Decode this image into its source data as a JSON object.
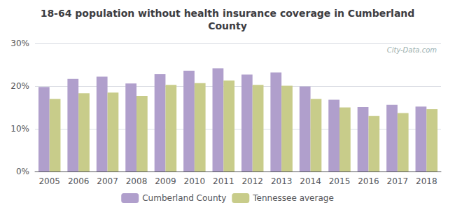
{
  "chart_data": {
    "type": "bar",
    "title": "18-64 population without health insurance coverage in Cumberland\nCounty",
    "categories": [
      "2005",
      "2006",
      "2007",
      "2008",
      "2009",
      "2010",
      "2011",
      "2012",
      "2013",
      "2014",
      "2015",
      "2016",
      "2017",
      "2018"
    ],
    "series": [
      {
        "name": "Cumberland County",
        "color": "#b09fcc",
        "values": [
          19.8,
          21.7,
          22.2,
          20.6,
          22.8,
          23.6,
          24.2,
          22.7,
          23.2,
          19.9,
          16.8,
          15.1,
          15.6,
          15.2
        ]
      },
      {
        "name": "Tennessee average",
        "color": "#c8cc8a",
        "values": [
          17.0,
          18.3,
          18.5,
          17.7,
          20.3,
          20.7,
          21.3,
          20.3,
          20.1,
          17.0,
          15.0,
          13.0,
          13.7,
          14.6
        ]
      }
    ],
    "ylim": [
      0,
      30
    ],
    "yticks": [
      {
        "value": 0,
        "label": "0%"
      },
      {
        "value": 10,
        "label": "10%"
      },
      {
        "value": 20,
        "label": "20%"
      },
      {
        "value": 30,
        "label": "30%"
      }
    ],
    "grid": true,
    "legend": "bottom",
    "annotations": [
      "City-Data.com"
    ]
  }
}
